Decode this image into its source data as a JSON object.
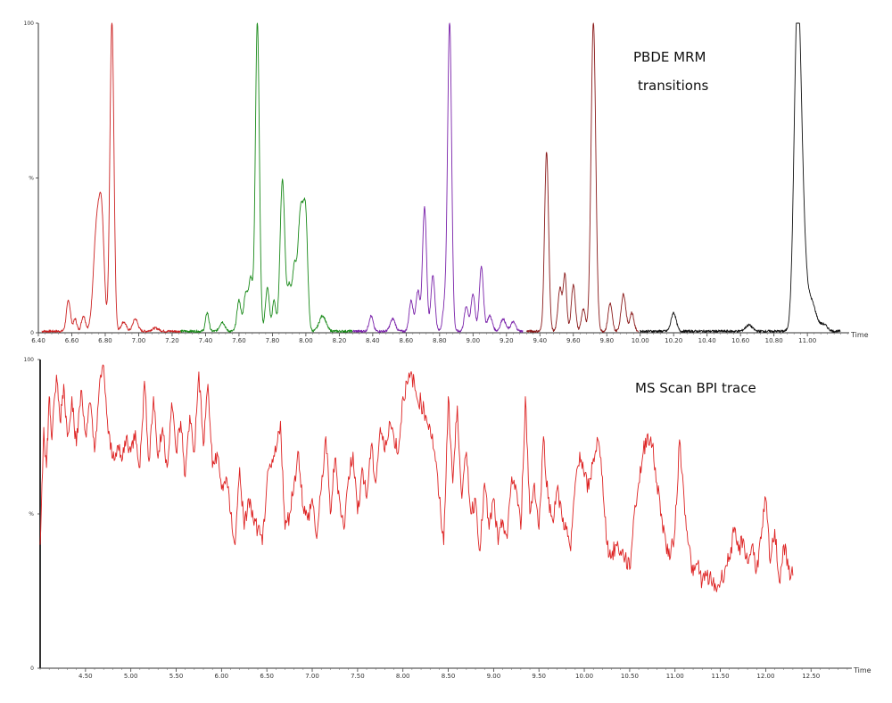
{
  "chart_data": [
    {
      "type": "line",
      "x_axis_label": "Time",
      "xlim": [
        6.4,
        11.25
      ],
      "ylim": [
        0,
        100
      ],
      "y_tick_labels": [
        "0",
        "%",
        "100"
      ],
      "x_tick_labels": [
        "6.40",
        "6.60",
        "6.80",
        "7.00",
        "7.20",
        "7.40",
        "7.60",
        "7.80",
        "8.00",
        "8.20",
        "8.40",
        "8.60",
        "8.80",
        "9.00",
        "9.20",
        "9.40",
        "9.60",
        "9.80",
        "10.00",
        "10.20",
        "10.40",
        "10.60",
        "10.80",
        "11.00"
      ],
      "annotation": [
        "PBDE MRM",
        "transitions"
      ],
      "series": [
        {
          "color": "#cc2222",
          "x_range": [
            6.42,
            7.25
          ],
          "baseline": 0.5,
          "peaks": [
            [
              6.58,
              10,
              0.012
            ],
            [
              6.62,
              4,
              0.01
            ],
            [
              6.67,
              5,
              0.012
            ],
            [
              6.75,
              34,
              0.02
            ],
            [
              6.78,
              30,
              0.015
            ],
            [
              6.84,
              100,
              0.012
            ],
            [
              6.91,
              3,
              0.015
            ],
            [
              6.98,
              4,
              0.015
            ],
            [
              7.1,
              1,
              0.02
            ]
          ]
        },
        {
          "color": "#1a8a1a",
          "x_range": [
            7.25,
            8.28
          ],
          "baseline": 0.5,
          "peaks": [
            [
              7.41,
              6,
              0.01
            ],
            [
              7.5,
              3,
              0.015
            ],
            [
              7.6,
              10,
              0.012
            ],
            [
              7.64,
              12,
              0.012
            ],
            [
              7.67,
              17,
              0.012
            ],
            [
              7.71,
              100,
              0.012
            ],
            [
              7.77,
              14,
              0.012
            ],
            [
              7.81,
              10,
              0.01
            ],
            [
              7.86,
              49,
              0.014
            ],
            [
              7.9,
              14,
              0.012
            ],
            [
              7.93,
              18,
              0.012
            ],
            [
              7.97,
              40,
              0.018
            ],
            [
              8.0,
              30,
              0.012
            ],
            [
              8.1,
              5,
              0.02
            ]
          ]
        },
        {
          "color": "#7a22aa",
          "x_range": [
            8.28,
            9.3
          ],
          "baseline": 0.5,
          "peaks": [
            [
              8.39,
              5,
              0.012
            ],
            [
              8.52,
              4,
              0.015
            ],
            [
              8.63,
              10,
              0.012
            ],
            [
              8.67,
              13,
              0.012
            ],
            [
              8.71,
              40,
              0.012
            ],
            [
              8.76,
              18,
              0.012
            ],
            [
              8.83,
              8,
              0.012
            ],
            [
              8.86,
              100,
              0.012
            ],
            [
              8.96,
              8,
              0.012
            ],
            [
              9.0,
              12,
              0.012
            ],
            [
              9.05,
              21,
              0.012
            ],
            [
              9.1,
              5,
              0.015
            ],
            [
              9.18,
              4,
              0.015
            ],
            [
              9.24,
              3,
              0.015
            ]
          ]
        },
        {
          "color": "#8a1a1a",
          "x_range": [
            9.32,
            9.99
          ],
          "baseline": 0.5,
          "peaks": [
            [
              9.44,
              58,
              0.012
            ],
            [
              9.52,
              14,
              0.012
            ],
            [
              9.55,
              18,
              0.01
            ],
            [
              9.6,
              15,
              0.012
            ],
            [
              9.66,
              7,
              0.012
            ],
            [
              9.72,
              100,
              0.014
            ],
            [
              9.82,
              9,
              0.012
            ],
            [
              9.9,
              12,
              0.014
            ],
            [
              9.95,
              6,
              0.012
            ]
          ]
        },
        {
          "color": "#111111",
          "x_range": [
            10.0,
            11.2
          ],
          "baseline": 0.5,
          "peaks": [
            [
              10.2,
              6,
              0.015
            ],
            [
              10.65,
              2,
              0.02
            ],
            [
              10.94,
              100,
              0.02
            ],
            [
              10.97,
              28,
              0.02
            ],
            [
              11.02,
              10,
              0.03
            ],
            [
              11.1,
              2,
              0.02
            ]
          ]
        }
      ]
    },
    {
      "type": "line",
      "x_axis_label": "Time",
      "xlim": [
        4.0,
        12.95
      ],
      "ylim": [
        0,
        100
      ],
      "y_tick_labels": [
        "0",
        "%",
        "100"
      ],
      "x_tick_labels": [
        "4.50",
        "5.00",
        "5.50",
        "6.00",
        "6.50",
        "7.00",
        "7.50",
        "8.00",
        "8.50",
        "9.00",
        "9.50",
        "10.00",
        "10.50",
        "11.00",
        "11.50",
        "12.00",
        "12.50"
      ],
      "annotation": [
        "MS Scan BPI trace"
      ],
      "series": [
        {
          "color": "#dd2222",
          "points": [
            [
              4.0,
              40
            ],
            [
              4.04,
              78
            ],
            [
              4.07,
              65
            ],
            [
              4.1,
              88
            ],
            [
              4.13,
              74
            ],
            [
              4.18,
              95
            ],
            [
              4.22,
              80
            ],
            [
              4.26,
              92
            ],
            [
              4.3,
              75
            ],
            [
              4.35,
              88
            ],
            [
              4.4,
              72
            ],
            [
              4.45,
              90
            ],
            [
              4.5,
              76
            ],
            [
              4.55,
              86
            ],
            [
              4.6,
              70
            ],
            [
              4.65,
              90
            ],
            [
              4.7,
              98
            ],
            [
              4.75,
              76
            ],
            [
              4.8,
              68
            ],
            [
              4.85,
              72
            ],
            [
              4.9,
              67
            ],
            [
              4.95,
              75
            ],
            [
              5.0,
              70
            ],
            [
              5.05,
              77
            ],
            [
              5.1,
              65
            ],
            [
              5.15,
              93
            ],
            [
              5.2,
              67
            ],
            [
              5.25,
              88
            ],
            [
              5.3,
              68
            ],
            [
              5.35,
              78
            ],
            [
              5.4,
              65
            ],
            [
              5.45,
              86
            ],
            [
              5.5,
              70
            ],
            [
              5.55,
              80
            ],
            [
              5.6,
              62
            ],
            [
              5.65,
              82
            ],
            [
              5.7,
              70
            ],
            [
              5.75,
              96
            ],
            [
              5.8,
              72
            ],
            [
              5.85,
              92
            ],
            [
              5.9,
              65
            ],
            [
              5.95,
              70
            ],
            [
              6.0,
              58
            ],
            [
              6.05,
              62
            ],
            [
              6.1,
              50
            ],
            [
              6.15,
              40
            ],
            [
              6.2,
              65
            ],
            [
              6.25,
              45
            ],
            [
              6.3,
              55
            ],
            [
              6.35,
              48
            ],
            [
              6.4,
              45
            ],
            [
              6.45,
              40
            ],
            [
              6.5,
              60
            ],
            [
              6.55,
              65
            ],
            [
              6.6,
              70
            ],
            [
              6.65,
              80
            ],
            [
              6.7,
              45
            ],
            [
              6.75,
              50
            ],
            [
              6.8,
              60
            ],
            [
              6.85,
              70
            ],
            [
              6.9,
              52
            ],
            [
              6.95,
              48
            ],
            [
              7.0,
              55
            ],
            [
              7.05,
              42
            ],
            [
              7.1,
              58
            ],
            [
              7.15,
              75
            ],
            [
              7.2,
              50
            ],
            [
              7.25,
              68
            ],
            [
              7.3,
              55
            ],
            [
              7.35,
              45
            ],
            [
              7.4,
              62
            ],
            [
              7.45,
              70
            ],
            [
              7.5,
              50
            ],
            [
              7.55,
              65
            ],
            [
              7.6,
              55
            ],
            [
              7.65,
              72
            ],
            [
              7.7,
              60
            ],
            [
              7.75,
              78
            ],
            [
              7.8,
              70
            ],
            [
              7.85,
              80
            ],
            [
              7.9,
              75
            ],
            [
              7.95,
              70
            ],
            [
              8.0,
              88
            ],
            [
              8.05,
              92
            ],
            [
              8.1,
              95
            ],
            [
              8.15,
              88
            ],
            [
              8.2,
              86
            ],
            [
              8.25,
              82
            ],
            [
              8.3,
              78
            ],
            [
              8.35,
              70
            ],
            [
              8.4,
              55
            ],
            [
              8.45,
              40
            ],
            [
              8.5,
              88
            ],
            [
              8.55,
              60
            ],
            [
              8.6,
              85
            ],
            [
              8.65,
              55
            ],
            [
              8.7,
              70
            ],
            [
              8.75,
              50
            ],
            [
              8.8,
              55
            ],
            [
              8.85,
              38
            ],
            [
              8.9,
              60
            ],
            [
              8.95,
              45
            ],
            [
              9.0,
              55
            ],
            [
              9.05,
              40
            ],
            [
              9.1,
              48
            ],
            [
              9.15,
              42
            ],
            [
              9.2,
              62
            ],
            [
              9.25,
              58
            ],
            [
              9.3,
              45
            ],
            [
              9.35,
              88
            ],
            [
              9.4,
              50
            ],
            [
              9.45,
              60
            ],
            [
              9.5,
              45
            ],
            [
              9.55,
              75
            ],
            [
              9.6,
              55
            ],
            [
              9.65,
              48
            ],
            [
              9.7,
              58
            ],
            [
              9.75,
              50
            ],
            [
              9.8,
              45
            ],
            [
              9.85,
              38
            ],
            [
              9.9,
              60
            ],
            [
              9.95,
              70
            ],
            [
              10.0,
              62
            ],
            [
              10.05,
              58
            ],
            [
              10.1,
              68
            ],
            [
              10.15,
              74
            ],
            [
              10.2,
              62
            ],
            [
              10.25,
              40
            ],
            [
              10.3,
              36
            ],
            [
              10.35,
              40
            ],
            [
              10.4,
              38
            ],
            [
              10.45,
              36
            ],
            [
              10.5,
              32
            ],
            [
              10.55,
              50
            ],
            [
              10.6,
              60
            ],
            [
              10.65,
              70
            ],
            [
              10.7,
              76
            ],
            [
              10.75,
              72
            ],
            [
              10.8,
              60
            ],
            [
              10.85,
              50
            ],
            [
              10.9,
              40
            ],
            [
              10.95,
              36
            ],
            [
              11.0,
              45
            ],
            [
              11.05,
              74
            ],
            [
              11.1,
              55
            ],
            [
              11.15,
              40
            ],
            [
              11.2,
              30
            ],
            [
              11.25,
              34
            ],
            [
              11.3,
              28
            ],
            [
              11.35,
              30
            ],
            [
              11.4,
              28
            ],
            [
              11.45,
              26
            ],
            [
              11.5,
              28
            ],
            [
              11.55,
              32
            ],
            [
              11.6,
              36
            ],
            [
              11.65,
              44
            ],
            [
              11.7,
              38
            ],
            [
              11.75,
              42
            ],
            [
              11.8,
              34
            ],
            [
              11.85,
              40
            ],
            [
              11.9,
              32
            ],
            [
              11.95,
              42
            ],
            [
              12.0,
              55
            ],
            [
              12.05,
              34
            ],
            [
              12.1,
              45
            ],
            [
              12.15,
              28
            ],
            [
              12.2,
              40
            ],
            [
              12.25,
              32
            ],
            [
              12.3,
              30
            ]
          ]
        }
      ]
    }
  ]
}
